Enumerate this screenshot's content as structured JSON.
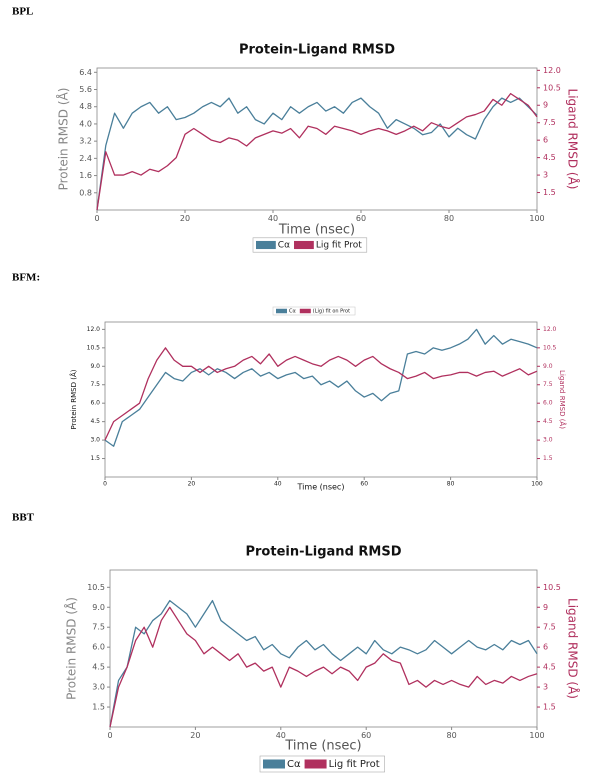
{
  "chart_data": [
    {
      "type": "line",
      "panel_label": "BPL",
      "title": "Protein-Ligand RMSD",
      "x_label": "Time (nsec)",
      "y_label": "Protein RMSD (Å)",
      "y2_label": "Ligand RMSD (Å)",
      "x": [
        0,
        2,
        4,
        6,
        8,
        10,
        12,
        14,
        16,
        18,
        20,
        22,
        24,
        26,
        28,
        30,
        32,
        34,
        36,
        38,
        40,
        42,
        44,
        46,
        48,
        50,
        52,
        54,
        56,
        58,
        60,
        62,
        64,
        66,
        68,
        70,
        72,
        74,
        76,
        78,
        80,
        82,
        84,
        86,
        88,
        90,
        92,
        94,
        96,
        98,
        100
      ],
      "xlim": [
        0,
        100
      ],
      "xticks": [
        0,
        20,
        40,
        60,
        80,
        100
      ],
      "ylim": [
        0,
        6.6
      ],
      "yticks": [
        0.8,
        1.6,
        2.4,
        3.2,
        {
          "value": 4,
          "label": "4.0"
        },
        4.8,
        5.6,
        6.4
      ],
      "y2lim": [
        0,
        12.2
      ],
      "y2ticks": [
        1.5,
        3,
        4.5,
        6,
        7.5,
        9,
        10.5,
        {
          "value": 12,
          "label": "12.0"
        }
      ],
      "series": [
        {
          "name": "Cα",
          "color": "#4a7f9a",
          "values": [
            0,
            3.0,
            4.5,
            3.8,
            4.5,
            4.8,
            5.0,
            4.5,
            4.8,
            4.2,
            4.3,
            4.5,
            4.8,
            5.0,
            4.8,
            5.2,
            4.5,
            4.8,
            4.2,
            4.0,
            4.5,
            4.2,
            4.8,
            4.5,
            4.8,
            5.0,
            4.6,
            4.8,
            4.5,
            5.0,
            5.2,
            4.8,
            4.5,
            3.8,
            4.2,
            4.0,
            3.8,
            3.5,
            3.6,
            4.0,
            3.4,
            3.8,
            3.5,
            3.3,
            4.2,
            4.8,
            5.2,
            5.0,
            5.2,
            4.8,
            4.4
          ]
        },
        {
          "name": "Lig fit Prot",
          "color": "#b0305e",
          "axis": "y2",
          "values": [
            0,
            5.0,
            3.0,
            3.0,
            3.3,
            3.0,
            3.5,
            3.3,
            3.8,
            4.5,
            6.5,
            7.0,
            6.5,
            6.0,
            5.8,
            6.2,
            6.0,
            5.5,
            6.2,
            6.5,
            6.8,
            6.6,
            7.0,
            6.2,
            7.2,
            7.0,
            6.5,
            7.2,
            7.0,
            6.8,
            6.5,
            6.8,
            7.0,
            6.8,
            6.5,
            6.8,
            7.2,
            6.8,
            7.5,
            7.2,
            7.0,
            7.5,
            8.0,
            8.2,
            8.5,
            9.5,
            9.0,
            10.0,
            9.5,
            9.0,
            8.0
          ]
        }
      ]
    },
    {
      "type": "line",
      "panel_label": "BFM:",
      "x_label": "Time (nsec)",
      "y_label": "Protein RMSD (Å)",
      "y2_label": "Ligand RMSD (Å)",
      "x": [
        0,
        2,
        4,
        6,
        8,
        10,
        12,
        14,
        16,
        18,
        20,
        22,
        24,
        26,
        28,
        30,
        32,
        34,
        36,
        38,
        40,
        42,
        44,
        46,
        48,
        50,
        52,
        54,
        56,
        58,
        60,
        62,
        64,
        66,
        68,
        70,
        72,
        74,
        76,
        78,
        80,
        82,
        84,
        86,
        88,
        90,
        92,
        94,
        96,
        98,
        100
      ],
      "xlim": [
        0,
        100
      ],
      "xticks": [
        0,
        20,
        40,
        60,
        80,
        100
      ],
      "ylim": [
        0,
        12.6
      ],
      "yticks": [
        1.5,
        {
          "value": 3,
          "label": "3.0"
        },
        4.5,
        {
          "value": 6,
          "label": "6.0"
        },
        7.5,
        {
          "value": 9,
          "label": "9.0"
        },
        10.5,
        {
          "value": 12,
          "label": "12.0"
        }
      ],
      "y2lim": [
        0,
        12.6
      ],
      "y2ticks": [
        1.5,
        {
          "value": 3,
          "label": "3.0"
        },
        4.5,
        {
          "value": 6,
          "label": "6.0"
        },
        7.5,
        {
          "value": 9,
          "label": "9.0"
        },
        10.5,
        {
          "value": 12,
          "label": "12.0"
        }
      ],
      "series": [
        {
          "name": "Cα",
          "color": "#4a7f9a",
          "values": [
            3.0,
            2.5,
            4.5,
            5.0,
            5.5,
            6.5,
            7.5,
            8.5,
            8.0,
            7.8,
            8.5,
            8.8,
            8.3,
            8.8,
            8.5,
            8.0,
            8.5,
            8.8,
            8.2,
            8.5,
            8.0,
            8.3,
            8.5,
            8.0,
            8.2,
            7.5,
            7.8,
            7.3,
            7.8,
            7.0,
            6.5,
            6.8,
            6.2,
            6.8,
            7.0,
            10.0,
            10.2,
            10.0,
            10.5,
            10.3,
            10.5,
            10.8,
            11.2,
            12.0,
            10.8,
            11.5,
            10.8,
            11.2,
            11.0,
            10.8,
            10.5
          ]
        },
        {
          "name": "(Lig) fit on Prot",
          "color": "#b0305e",
          "axis": "y2",
          "values": [
            3.0,
            4.5,
            5.0,
            5.5,
            6.0,
            8.0,
            9.5,
            10.5,
            9.5,
            9.0,
            9.0,
            8.5,
            9.0,
            8.5,
            8.8,
            9.0,
            9.5,
            9.8,
            9.2,
            10.0,
            9.0,
            9.5,
            9.8,
            9.5,
            9.2,
            9.0,
            9.5,
            9.8,
            9.5,
            9.0,
            9.5,
            9.8,
            9.2,
            8.8,
            8.5,
            8.0,
            8.2,
            8.5,
            8.0,
            8.2,
            8.3,
            8.5,
            8.5,
            8.2,
            8.5,
            8.6,
            8.2,
            8.5,
            8.8,
            8.3,
            8.6
          ]
        }
      ]
    },
    {
      "type": "line",
      "panel_label": "BBT",
      "title": "Protein-Ligand RMSD",
      "x_label": "Time (nsec)",
      "y_label": "Protein RMSD (Å)",
      "y2_label": "Ligand RMSD (Å)",
      "x": [
        0,
        2,
        4,
        6,
        8,
        10,
        12,
        14,
        16,
        18,
        20,
        22,
        24,
        26,
        28,
        30,
        32,
        34,
        36,
        38,
        40,
        42,
        44,
        46,
        48,
        50,
        52,
        54,
        56,
        58,
        60,
        62,
        64,
        66,
        68,
        70,
        72,
        74,
        76,
        78,
        80,
        82,
        84,
        86,
        88,
        90,
        92,
        94,
        96,
        98,
        100
      ],
      "xlim": [
        0,
        100
      ],
      "xticks": [
        0,
        20,
        40,
        60,
        80,
        100
      ],
      "ylim": [
        0,
        11.8
      ],
      "yticks": [
        1.5,
        {
          "value": 3,
          "label": "3.0"
        },
        4.5,
        {
          "value": 6,
          "label": "6.0"
        },
        7.5,
        {
          "value": 9,
          "label": "9.0"
        },
        10.5
      ],
      "y2lim": [
        0,
        11.8
      ],
      "y2ticks": [
        1.5,
        3,
        4.5,
        6,
        7.5,
        9,
        10.5
      ],
      "series": [
        {
          "name": "Cα",
          "color": "#4a7f9a",
          "values": [
            0,
            3.5,
            4.5,
            7.5,
            7.0,
            8.0,
            8.5,
            9.5,
            9.0,
            8.5,
            7.5,
            8.5,
            9.5,
            8.0,
            7.5,
            7.0,
            6.5,
            6.8,
            5.8,
            6.2,
            5.5,
            5.2,
            6.0,
            6.5,
            5.8,
            6.2,
            5.5,
            5.0,
            5.5,
            6.0,
            5.5,
            6.5,
            5.8,
            5.5,
            6.0,
            5.8,
            5.5,
            5.8,
            6.5,
            6.0,
            5.5,
            6.0,
            6.5,
            6.0,
            5.8,
            6.2,
            5.8,
            6.5,
            6.2,
            6.5,
            5.5
          ]
        },
        {
          "name": "Lig fit Prot",
          "color": "#b0305e",
          "axis": "y2",
          "values": [
            0,
            3.0,
            4.5,
            6.5,
            7.5,
            6.0,
            8.0,
            9.0,
            8.0,
            7.0,
            6.5,
            5.5,
            6.0,
            5.5,
            5.0,
            5.5,
            4.5,
            4.8,
            4.2,
            4.5,
            3.0,
            4.5,
            4.2,
            3.8,
            4.2,
            4.5,
            4.0,
            4.5,
            4.2,
            3.5,
            4.5,
            4.8,
            5.5,
            5.0,
            4.8,
            3.2,
            3.5,
            3.0,
            3.5,
            3.2,
            3.5,
            3.2,
            3.0,
            3.8,
            3.2,
            3.5,
            3.3,
            3.8,
            3.5,
            3.8,
            4.0
          ]
        }
      ]
    }
  ]
}
